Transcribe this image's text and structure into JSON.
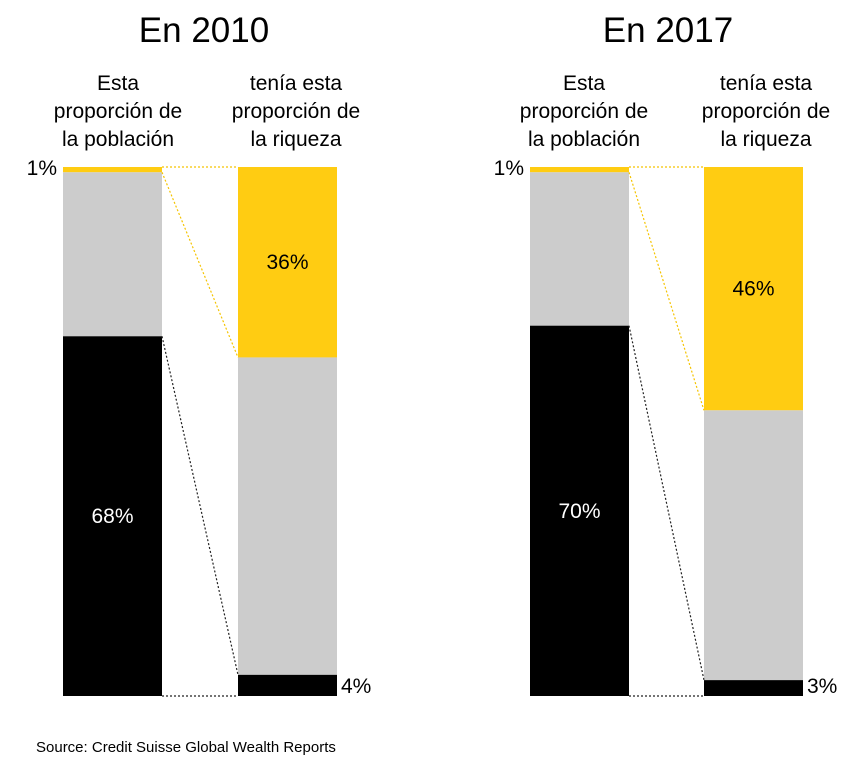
{
  "source": "Source: Credit Suisse Global Wealth Reports",
  "colors": {
    "top": "#FFCC12",
    "middle": "#CCCCCC",
    "bottom": "#000000",
    "connector_top": "#F5C400",
    "connector_bottom": "#222222"
  },
  "chart_data": [
    {
      "type": "bar",
      "stacked": true,
      "title": "En 2010",
      "categories": [
        "Esta proporción de la población",
        "tenía esta proporción de la riqueza"
      ],
      "population": {
        "label": "Esta proporción de la población",
        "top": 1,
        "middle": 31,
        "bottom": 68
      },
      "wealth": {
        "label": "tenía esta proporción de la riqueza",
        "top": 36,
        "middle": 60,
        "bottom": 4
      },
      "labels": {
        "pop_top": "1%",
        "pop_bottom": "68%",
        "wealth_top": "36%",
        "wealth_bottom": "4%"
      },
      "ylim": [
        0,
        100
      ]
    },
    {
      "type": "bar",
      "stacked": true,
      "title": "En 2017",
      "categories": [
        "Esta proporción de la población",
        "tenía esta proporción de la riqueza"
      ],
      "population": {
        "label": "Esta proporción de la población",
        "top": 1,
        "middle": 29,
        "bottom": 70
      },
      "wealth": {
        "label": "tenía esta proporción de la riqueza",
        "top": 46,
        "middle": 51,
        "bottom": 3
      },
      "labels": {
        "pop_top": "1%",
        "pop_bottom": "70%",
        "wealth_top": "46%",
        "wealth_bottom": "3%"
      },
      "ylim": [
        0,
        100
      ]
    }
  ]
}
